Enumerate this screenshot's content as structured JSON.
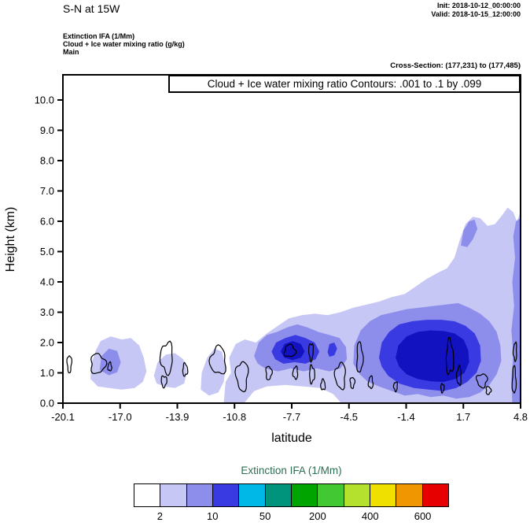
{
  "header": {
    "title": "S-N at 15W",
    "init": "Init: 2018-10-12_00:00:00",
    "valid": "Valid: 2018-10-15_12:00:00",
    "subtitle_lines": [
      "Extinction IFA  (1/Mm)",
      "Cloud + Ice water mixing ratio   (g/kg)",
      "Main"
    ],
    "cross_section": "Cross-Section: (177,231) to (177,485)"
  },
  "chart_data": {
    "type": "contour",
    "inner_title": "Cloud + Ice water mixing ratio Contours: .001 to .1 by .099",
    "xlabel": "latitude",
    "ylabel": "Height (km)",
    "xlim": [
      -20.1,
      4.8
    ],
    "ylim": [
      0,
      10.83
    ],
    "x_tick_labels": [
      "-20.1",
      "-17.0",
      "-13.9",
      "-10.8",
      "-7.7",
      "-4.5",
      "-1.4",
      "1.7",
      "4.8"
    ],
    "y_tick_labels": [
      "0.0",
      "1.0",
      "2.0",
      "3.0",
      "4.0",
      "5.0",
      "6.0",
      "7.0",
      "8.0",
      "9.0",
      "10.0"
    ],
    "grid": false,
    "fill_levels": {
      "colors": [
        "#c7c7f5",
        "#8d8dec",
        "#3a3ae2",
        "#1212c0"
      ],
      "values": [
        "2-10",
        "10-50",
        "50-200",
        "200-400"
      ],
      "regions": [
        {
          "level": 0,
          "points": [
            [
              -11.35,
              0
            ],
            [
              -11.25,
              0.7
            ],
            [
              -10.95,
              1.0
            ],
            [
              -11.05,
              1.5
            ],
            [
              -10.7,
              1.95
            ],
            [
              -10.2,
              2.1
            ],
            [
              -9.6,
              2.0
            ],
            [
              -9.0,
              2.3
            ],
            [
              -8.4,
              2.55
            ],
            [
              -7.8,
              2.8
            ],
            [
              -7.1,
              2.9
            ],
            [
              -6.4,
              2.95
            ],
            [
              -5.7,
              2.9
            ],
            [
              -5.0,
              3.0
            ],
            [
              -4.3,
              3.15
            ],
            [
              -3.6,
              3.25
            ],
            [
              -2.9,
              3.35
            ],
            [
              -2.2,
              3.5
            ],
            [
              -1.5,
              3.6
            ],
            [
              -0.9,
              3.85
            ],
            [
              -0.3,
              4.1
            ],
            [
              0.3,
              4.3
            ],
            [
              0.8,
              4.45
            ],
            [
              1.2,
              4.8
            ],
            [
              1.5,
              5.4
            ],
            [
              1.8,
              5.9
            ],
            [
              2.2,
              6.15
            ],
            [
              2.6,
              6.1
            ],
            [
              3.0,
              5.85
            ],
            [
              3.4,
              5.9
            ],
            [
              3.8,
              6.2
            ],
            [
              4.1,
              6.45
            ],
            [
              4.4,
              6.3
            ],
            [
              4.6,
              6.0
            ],
            [
              4.8,
              6.3
            ],
            [
              4.8,
              0
            ],
            [
              -4.95,
              0
            ],
            [
              -5.4,
              0.3
            ],
            [
              -6.1,
              0.5
            ],
            [
              -7.0,
              0.55
            ],
            [
              -8.0,
              0.6
            ],
            [
              -9.0,
              0.55
            ],
            [
              -9.7,
              0.4
            ],
            [
              -10.1,
              0.1
            ],
            [
              -10.25,
              0
            ]
          ]
        },
        {
          "level": 0,
          "points": [
            [
              -18.6,
              0.8
            ],
            [
              -18.55,
              1.3
            ],
            [
              -18.3,
              1.75
            ],
            [
              -18.05,
              2.05
            ],
            [
              -17.5,
              2.2
            ],
            [
              -16.9,
              2.1
            ],
            [
              -16.4,
              2.15
            ],
            [
              -15.95,
              1.9
            ],
            [
              -15.7,
              1.5
            ],
            [
              -15.55,
              1.05
            ],
            [
              -15.75,
              0.7
            ],
            [
              -16.2,
              0.5
            ],
            [
              -16.9,
              0.45
            ],
            [
              -17.6,
              0.5
            ],
            [
              -18.2,
              0.55
            ]
          ]
        },
        {
          "level": 0,
          "points": [
            [
              -15.15,
              0.9
            ],
            [
              -14.95,
              1.35
            ],
            [
              -14.5,
              1.6
            ],
            [
              -14.0,
              1.65
            ],
            [
              -13.55,
              1.45
            ],
            [
              -13.35,
              1.05
            ],
            [
              -13.5,
              0.65
            ],
            [
              -14.0,
              0.5
            ],
            [
              -14.6,
              0.55
            ],
            [
              -15.0,
              0.65
            ]
          ]
        },
        {
          "level": 0,
          "points": [
            [
              -12.6,
              0.45
            ],
            [
              -12.55,
              1.0
            ],
            [
              -12.25,
              1.5
            ],
            [
              -11.85,
              1.8
            ],
            [
              -11.45,
              1.7
            ],
            [
              -11.25,
              1.2
            ],
            [
              -11.35,
              0.7
            ],
            [
              -11.65,
              0.35
            ],
            [
              -12.15,
              0.25
            ]
          ]
        },
        {
          "level": 1,
          "points": [
            [
              -18.1,
              1.1
            ],
            [
              -18.0,
              1.55
            ],
            [
              -17.6,
              1.8
            ],
            [
              -17.15,
              1.72
            ],
            [
              -16.95,
              1.35
            ],
            [
              -17.15,
              1.02
            ],
            [
              -17.6,
              0.92
            ]
          ]
        },
        {
          "level": 1,
          "points": [
            [
              -9.7,
              1.55
            ],
            [
              -9.45,
              2.0
            ],
            [
              -9.0,
              2.25
            ],
            [
              -8.45,
              2.35
            ],
            [
              -7.9,
              2.5
            ],
            [
              -7.35,
              2.6
            ],
            [
              -6.8,
              2.5
            ],
            [
              -6.2,
              2.35
            ],
            [
              -5.6,
              2.25
            ],
            [
              -5.05,
              2.15
            ],
            [
              -4.7,
              1.85
            ],
            [
              -4.65,
              1.45
            ],
            [
              -5.0,
              1.15
            ],
            [
              -5.6,
              1.05
            ],
            [
              -6.3,
              1.15
            ],
            [
              -7.0,
              1.05
            ],
            [
              -7.7,
              1.15
            ],
            [
              -8.4,
              1.05
            ],
            [
              -9.1,
              1.15
            ],
            [
              -9.5,
              1.3
            ]
          ]
        },
        {
          "level": 1,
          "points": [
            [
              -4.3,
              1.3
            ],
            [
              -4.25,
              1.9
            ],
            [
              -3.9,
              2.4
            ],
            [
              -3.4,
              2.7
            ],
            [
              -2.8,
              2.9
            ],
            [
              -2.1,
              3.0
            ],
            [
              -1.4,
              3.1
            ],
            [
              -0.7,
              3.15
            ],
            [
              0.0,
              3.2
            ],
            [
              0.7,
              3.25
            ],
            [
              1.4,
              3.3
            ],
            [
              2.0,
              3.15
            ],
            [
              2.6,
              2.95
            ],
            [
              3.1,
              2.7
            ],
            [
              3.5,
              2.35
            ],
            [
              3.7,
              1.9
            ],
            [
              3.75,
              1.4
            ],
            [
              3.5,
              0.95
            ],
            [
              3.1,
              0.6
            ],
            [
              2.6,
              0.35
            ],
            [
              2.0,
              0.2
            ],
            [
              1.3,
              0.15
            ],
            [
              0.6,
              0.25
            ],
            [
              -0.1,
              0.2
            ],
            [
              -0.8,
              0.3
            ],
            [
              -1.5,
              0.25
            ],
            [
              -2.2,
              0.4
            ],
            [
              -2.9,
              0.55
            ],
            [
              -3.5,
              0.7
            ],
            [
              -3.95,
              0.95
            ]
          ]
        },
        {
          "level": 1,
          "points": [
            [
              4.35,
              0
            ],
            [
              4.3,
              0.8
            ],
            [
              4.4,
              1.6
            ],
            [
              4.3,
              2.4
            ],
            [
              4.45,
              3.2
            ],
            [
              4.35,
              4.0
            ],
            [
              4.5,
              4.8
            ],
            [
              4.4,
              5.5
            ],
            [
              4.55,
              6.0
            ],
            [
              4.8,
              6.1
            ],
            [
              4.8,
              0
            ]
          ]
        },
        {
          "level": 1,
          "points": [
            [
              1.55,
              5.2
            ],
            [
              1.7,
              5.7
            ],
            [
              2.0,
              6.0
            ],
            [
              2.3,
              6.05
            ],
            [
              2.45,
              5.75
            ],
            [
              2.2,
              5.4
            ],
            [
              1.9,
              5.15
            ]
          ]
        },
        {
          "level": 2,
          "points": [
            [
              -8.75,
              1.7
            ],
            [
              -8.5,
              2.0
            ],
            [
              -8.0,
              2.15
            ],
            [
              -7.45,
              2.25
            ],
            [
              -6.9,
              2.15
            ],
            [
              -6.4,
              2.0
            ],
            [
              -6.15,
              1.7
            ],
            [
              -6.35,
              1.45
            ],
            [
              -6.9,
              1.3
            ],
            [
              -7.5,
              1.35
            ],
            [
              -8.1,
              1.3
            ],
            [
              -8.55,
              1.45
            ]
          ]
        },
        {
          "level": 2,
          "points": [
            [
              -2.9,
              1.5
            ],
            [
              -2.75,
              2.0
            ],
            [
              -2.35,
              2.35
            ],
            [
              -1.8,
              2.6
            ],
            [
              -1.1,
              2.7
            ],
            [
              -0.3,
              2.75
            ],
            [
              0.5,
              2.75
            ],
            [
              1.2,
              2.7
            ],
            [
              1.8,
              2.55
            ],
            [
              2.3,
              2.3
            ],
            [
              2.6,
              1.9
            ],
            [
              2.65,
              1.4
            ],
            [
              2.4,
              1.0
            ],
            [
              1.9,
              0.7
            ],
            [
              1.3,
              0.5
            ],
            [
              0.6,
              0.4
            ],
            [
              -0.2,
              0.45
            ],
            [
              -1.0,
              0.5
            ],
            [
              -1.8,
              0.65
            ],
            [
              -2.4,
              0.9
            ],
            [
              -2.75,
              1.2
            ]
          ]
        },
        {
          "level": 2,
          "points": [
            [
              -5.7,
              1.68
            ],
            [
              -5.6,
              1.95
            ],
            [
              -5.33,
              2.0
            ],
            [
              -5.18,
              1.8
            ],
            [
              -5.33,
              1.58
            ],
            [
              -5.6,
              1.53
            ]
          ]
        },
        {
          "level": 3,
          "points": [
            [
              -8.25,
              1.7
            ],
            [
              -8.05,
              1.95
            ],
            [
              -7.6,
              2.05
            ],
            [
              -7.15,
              1.95
            ],
            [
              -6.95,
              1.7
            ],
            [
              -7.15,
              1.5
            ],
            [
              -7.6,
              1.42
            ],
            [
              -8.05,
              1.5
            ]
          ]
        },
        {
          "level": 3,
          "points": [
            [
              -2.0,
              1.5
            ],
            [
              -1.85,
              1.9
            ],
            [
              -1.4,
              2.2
            ],
            [
              -0.8,
              2.35
            ],
            [
              -0.1,
              2.4
            ],
            [
              0.6,
              2.38
            ],
            [
              1.2,
              2.3
            ],
            [
              1.7,
              2.1
            ],
            [
              1.95,
              1.75
            ],
            [
              2.0,
              1.35
            ],
            [
              1.75,
              1.0
            ],
            [
              1.25,
              0.8
            ],
            [
              0.6,
              0.7
            ],
            [
              -0.1,
              0.72
            ],
            [
              -0.8,
              0.8
            ],
            [
              -1.4,
              0.95
            ],
            [
              -1.8,
              1.2
            ]
          ]
        }
      ]
    },
    "cloud_contours": {
      "color": "#000000",
      "levels": [
        0.001,
        0.1
      ],
      "shapes": [
        [
          -19.75,
          1.3,
          0.12,
          0.28
        ],
        [
          -18.2,
          1.3,
          0.4,
          0.32
        ],
        [
          -17.55,
          1.2,
          0.1,
          0.14
        ],
        [
          -14.45,
          1.5,
          0.33,
          0.5
        ],
        [
          -14.6,
          0.72,
          0.15,
          0.18
        ],
        [
          -13.45,
          1.1,
          0.13,
          0.2
        ],
        [
          -11.65,
          1.4,
          0.42,
          0.45
        ],
        [
          -10.35,
          0.9,
          0.32,
          0.48
        ],
        [
          -8.9,
          1.0,
          0.16,
          0.22
        ],
        [
          -7.75,
          1.72,
          0.3,
          0.2
        ],
        [
          -7.45,
          1.0,
          0.13,
          0.2
        ],
        [
          -6.6,
          1.7,
          0.12,
          0.28
        ],
        [
          -6.55,
          0.95,
          0.14,
          0.28
        ],
        [
          -5.95,
          0.6,
          0.12,
          0.17
        ],
        [
          -5.0,
          0.9,
          0.28,
          0.42
        ],
        [
          -4.35,
          0.68,
          0.12,
          0.18
        ],
        [
          -3.95,
          1.5,
          0.16,
          0.5
        ],
        [
          -3.35,
          0.68,
          0.12,
          0.2
        ],
        [
          -2.0,
          0.55,
          0.1,
          0.15
        ],
        [
          0.55,
          0.5,
          0.09,
          0.14
        ],
        [
          0.95,
          1.5,
          0.2,
          0.55
        ],
        [
          1.45,
          0.9,
          0.12,
          0.3
        ],
        [
          2.7,
          0.75,
          0.28,
          0.22
        ],
        [
          3.05,
          0.42,
          0.13,
          0.13
        ],
        [
          4.45,
          0.75,
          0.1,
          0.45
        ],
        [
          4.5,
          1.7,
          0.09,
          0.3
        ]
      ]
    }
  },
  "colorbar": {
    "title": "Extinction IFA  (1/Mm)",
    "title_color": "#2d6e52",
    "colors": [
      "#ffffff",
      "#c7c7f5",
      "#8d8dec",
      "#3a3ae2",
      "#00b8e8",
      "#00947c",
      "#00a400",
      "#42c832",
      "#b4e02e",
      "#f0e000",
      "#f09600",
      "#e60000"
    ],
    "tick_labels": [
      "2",
      "10",
      "50",
      "200",
      "400",
      "600"
    ],
    "tick_positions": [
      1,
      3,
      5,
      7,
      9,
      11
    ],
    "num_cells": 12
  }
}
